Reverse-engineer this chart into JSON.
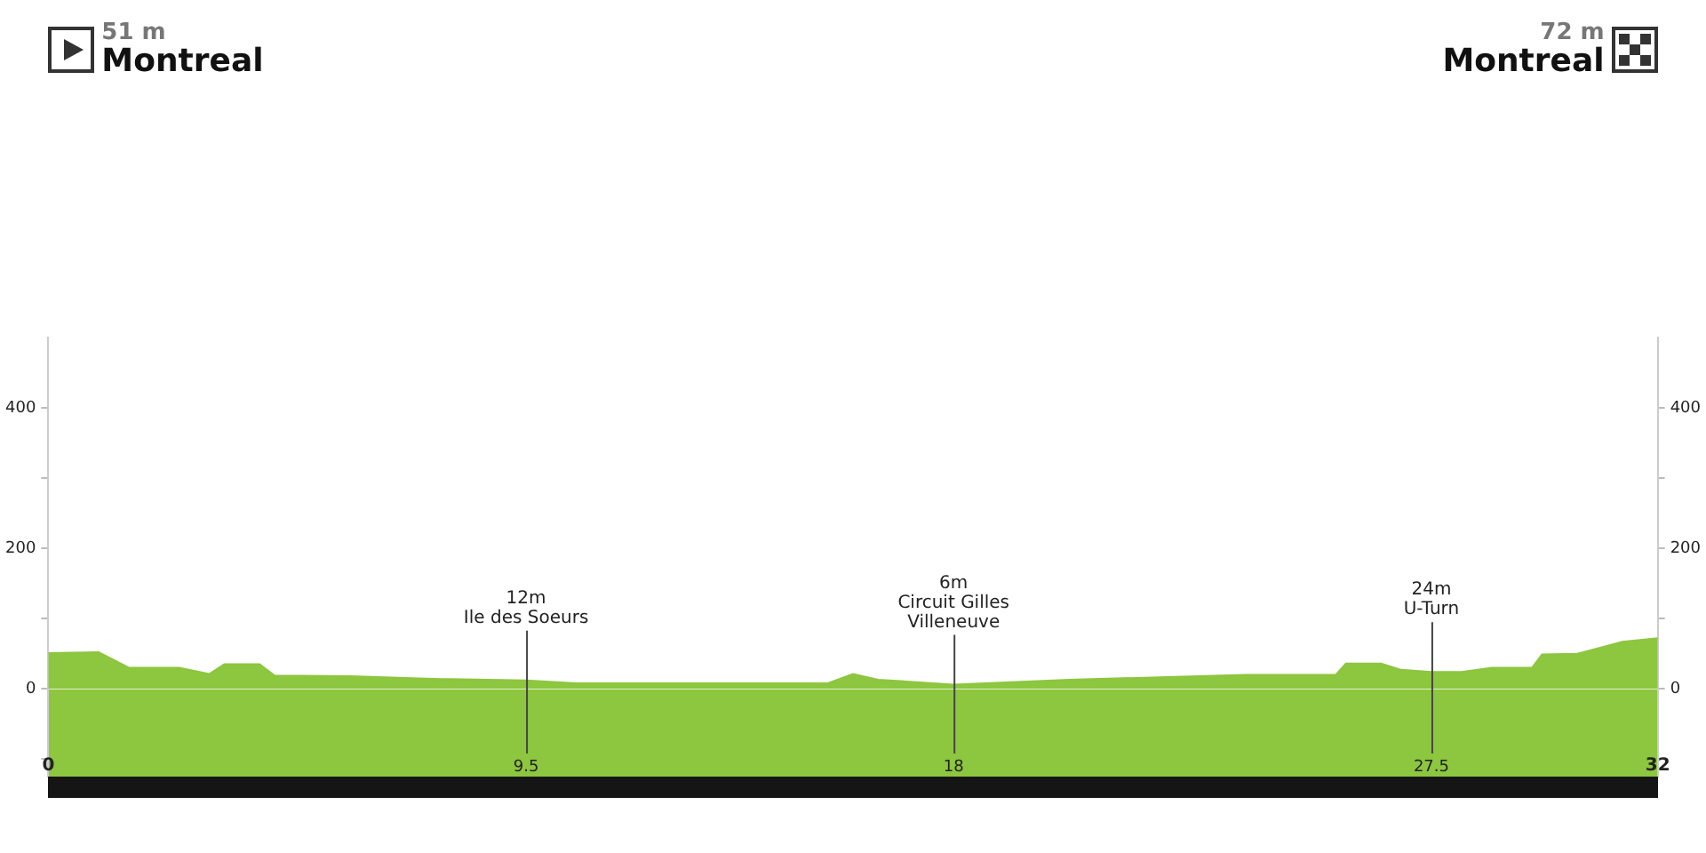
{
  "chart_data": {
    "type": "area",
    "x": [
      0,
      1.0,
      1.6,
      2.6,
      3.2,
      3.5,
      4.2,
      4.5,
      6.0,
      7.8,
      9.5,
      10.5,
      15.5,
      16.0,
      16.5,
      18,
      20.3,
      22.4,
      23.8,
      25.6,
      25.8,
      26.5,
      26.9,
      27.5,
      28.1,
      28.7,
      29.5,
      29.7,
      30.4,
      31.3,
      32
    ],
    "series": [
      {
        "color": "#8dc63f",
        "values": [
          51,
          52,
          30,
          30,
          21,
          35,
          35,
          19,
          18,
          14,
          12,
          8,
          8,
          21,
          13,
          6,
          13,
          17,
          20,
          20,
          36,
          36,
          27,
          24,
          24,
          30,
          30,
          49,
          50,
          67,
          72
        ]
      }
    ],
    "xlim": [
      0,
      32
    ],
    "xticks": [
      0,
      9.5,
      18,
      27.5,
      32
    ],
    "ylim": [
      -125,
      500
    ],
    "yticks": [
      {
        "value": -100,
        "label": null
      },
      0,
      {
        "value": 100,
        "label": null
      },
      200,
      {
        "value": 300,
        "label": null
      },
      400
    ],
    "y2lim": [
      -125,
      500
    ],
    "y2ticks": [
      {
        "value": -100,
        "label": null
      },
      0,
      {
        "value": 100,
        "label": null
      },
      200,
      {
        "value": 300,
        "label": null
      },
      400
    ],
    "annotations": [
      "51 m\nMontreal",
      "72 m\nMontreal",
      {
        "text": "12m\nIle des Soeurs",
        "x": 9.5,
        "y": 12
      },
      {
        "text": "6m\nCircuit Gilles\nVilleneuve",
        "x": 18,
        "y": 6
      },
      {
        "text": "24m\nU-Turn",
        "x": 27.5,
        "y": 24
      }
    ]
  }
}
